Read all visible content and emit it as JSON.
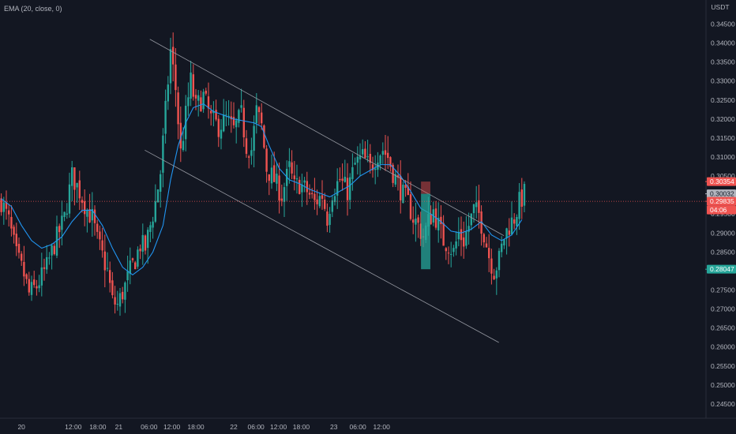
{
  "indicator": {
    "label": "EMA (20, close, 0)"
  },
  "colors": {
    "background": "#131722",
    "up": "#26a69a",
    "down": "#ef5350",
    "ema": "#2196f3",
    "channel": "#9598a1",
    "axis_text": "#b2b5be",
    "price_line": "#ef5350",
    "stop_zone": "#ef5350",
    "target_zone": "#26a69a"
  },
  "chart_data": {
    "type": "candlestick",
    "symbol_quote": "USDT",
    "grid": false,
    "ylim": [
      0.2425,
      0.3505
    ],
    "y_ticks": [
      "0.24500",
      "0.25000",
      "0.25500",
      "0.26000",
      "0.26500",
      "0.27000",
      "0.27500",
      "0.28000",
      "0.28500",
      "0.29000",
      "0.29500",
      "0.30000",
      "0.30500",
      "0.31000",
      "0.31500",
      "0.32000",
      "0.32500",
      "0.33000",
      "0.33500",
      "0.34000",
      "0.34500"
    ],
    "x_ticks": [
      "20",
      "12:00",
      "18:00",
      "21",
      "06:00",
      "12:00",
      "18:00",
      "22",
      "06:00",
      "12:00",
      "18:00",
      "23",
      "06:00",
      "12:00"
    ],
    "close_path": [
      [
        0,
        0.2985
      ],
      [
        3,
        0.293
      ],
      [
        6,
        0.284
      ],
      [
        9,
        0.279
      ],
      [
        11,
        0.274
      ],
      [
        14,
        0.276
      ],
      [
        18,
        0.281
      ],
      [
        21,
        0.287
      ],
      [
        25,
        0.294
      ],
      [
        28,
        0.305
      ],
      [
        31,
        0.301
      ],
      [
        34,
        0.296
      ],
      [
        36,
        0.294
      ],
      [
        38,
        0.288
      ],
      [
        40,
        0.284
      ],
      [
        42,
        0.28
      ],
      [
        44,
        0.272
      ],
      [
        46,
        0.271
      ],
      [
        49,
        0.276
      ],
      [
        51,
        0.28
      ],
      [
        53,
        0.283
      ],
      [
        55,
        0.287
      ],
      [
        57,
        0.286
      ],
      [
        59,
        0.292
      ],
      [
        61,
        0.298
      ],
      [
        63,
        0.306
      ],
      [
        65,
        0.322
      ],
      [
        67,
        0.338
      ],
      [
        69,
        0.328
      ],
      [
        71,
        0.311
      ],
      [
        73,
        0.321
      ],
      [
        75,
        0.33
      ],
      [
        77,
        0.323
      ],
      [
        80,
        0.326
      ],
      [
        83,
        0.32
      ],
      [
        86,
        0.318
      ],
      [
        89,
        0.32
      ],
      [
        92,
        0.317
      ],
      [
        95,
        0.321
      ],
      [
        97,
        0.313
      ],
      [
        99,
        0.312
      ],
      [
        101,
        0.322
      ],
      [
        103,
        0.318
      ],
      [
        105,
        0.307
      ],
      [
        108,
        0.304
      ],
      [
        111,
        0.3
      ],
      [
        114,
        0.307
      ],
      [
        116,
        0.302
      ],
      [
        118,
        0.303
      ],
      [
        121,
        0.301
      ],
      [
        124,
        0.298
      ],
      [
        127,
        0.3
      ],
      [
        129,
        0.294
      ],
      [
        131,
        0.301
      ],
      [
        134,
        0.304
      ],
      [
        137,
        0.301
      ],
      [
        140,
        0.308
      ],
      [
        143,
        0.31
      ],
      [
        146,
        0.307
      ],
      [
        149,
        0.311
      ],
      [
        151,
        0.312
      ],
      [
        153,
        0.31
      ],
      [
        155,
        0.306
      ],
      [
        157,
        0.303
      ],
      [
        159,
        0.3
      ],
      [
        161,
        0.298
      ],
      [
        163,
        0.294
      ],
      [
        165,
        0.292
      ],
      [
        167,
        0.289
      ],
      [
        169,
        0.293
      ],
      [
        171,
        0.296
      ],
      [
        173,
        0.292
      ],
      [
        175,
        0.288
      ],
      [
        177,
        0.287
      ],
      [
        179,
        0.285
      ],
      [
        181,
        0.29
      ],
      [
        183,
        0.288
      ],
      [
        185,
        0.292
      ],
      [
        187,
        0.296
      ],
      [
        189,
        0.295
      ],
      [
        191,
        0.29
      ],
      [
        193,
        0.284
      ],
      [
        195,
        0.28
      ],
      [
        197,
        0.283
      ],
      [
        199,
        0.289
      ],
      [
        201,
        0.292
      ],
      [
        203,
        0.294
      ],
      [
        205,
        0.298
      ],
      [
        207,
        0.3003
      ]
    ],
    "x_ticks_at_bar": [
      8.5,
      29,
      38.7,
      47,
      59,
      68,
      77.5,
      92.5,
      101.3,
      110.2,
      119.2,
      132.1,
      141.6,
      151
    ],
    "ema": {
      "name": "EMA (20, close, 0)",
      "points": [
        [
          0,
          0.299
        ],
        [
          4,
          0.297
        ],
        [
          8,
          0.292
        ],
        [
          12,
          0.288
        ],
        [
          16,
          0.286
        ],
        [
          20,
          0.287
        ],
        [
          24,
          0.289
        ],
        [
          28,
          0.293
        ],
        [
          32,
          0.296
        ],
        [
          36,
          0.296
        ],
        [
          40,
          0.292
        ],
        [
          44,
          0.286
        ],
        [
          48,
          0.281
        ],
        [
          52,
          0.279
        ],
        [
          56,
          0.281
        ],
        [
          60,
          0.285
        ],
        [
          64,
          0.292
        ],
        [
          67,
          0.304
        ],
        [
          70,
          0.313
        ],
        [
          73,
          0.319
        ],
        [
          76,
          0.323
        ],
        [
          80,
          0.324
        ],
        [
          84,
          0.322
        ],
        [
          88,
          0.321
        ],
        [
          92,
          0.32
        ],
        [
          96,
          0.3195
        ],
        [
          100,
          0.319
        ],
        [
          103,
          0.318
        ],
        [
          106,
          0.313
        ],
        [
          110,
          0.307
        ],
        [
          114,
          0.304
        ],
        [
          118,
          0.303
        ],
        [
          122,
          0.3015
        ],
        [
          126,
          0.3005
        ],
        [
          130,
          0.2995
        ],
        [
          134,
          0.301
        ],
        [
          138,
          0.3025
        ],
        [
          142,
          0.305
        ],
        [
          146,
          0.3065
        ],
        [
          150,
          0.308
        ],
        [
          154,
          0.308
        ],
        [
          158,
          0.305
        ],
        [
          162,
          0.301
        ],
        [
          166,
          0.2965
        ],
        [
          170,
          0.295
        ],
        [
          174,
          0.293
        ],
        [
          178,
          0.2905
        ],
        [
          182,
          0.29
        ],
        [
          186,
          0.291
        ],
        [
          190,
          0.293
        ],
        [
          194,
          0.2895
        ],
        [
          198,
          0.288
        ],
        [
          202,
          0.2895
        ],
        [
          206,
          0.2935
        ]
      ]
    },
    "channel": {
      "upper": [
        [
          0.341,
          59.3
        ],
        [
          0.3045,
          167.7
        ],
        [
          0.2893,
          199.4
        ]
      ],
      "lower": [
        [
          0.3118,
          57.3
        ],
        [
          0.2815,
          145.1
        ],
        [
          0.2612,
          197.4
        ]
      ],
      "upper_start_bar": 59.3,
      "upper_end_bar": 199.4,
      "lower_start_bar": 57.3,
      "lower_end_bar": 197.4
    },
    "position": {
      "entry": 0.30032,
      "stop": 0.30354,
      "target": 0.28047,
      "start_bar": 166.6,
      "end_bar": 170.3
    },
    "current_price": 0.29835,
    "price_tags": [
      {
        "text": "0.30354",
        "value": 0.30354,
        "bg": "#ef5350",
        "fg": "#ffffff"
      },
      {
        "text": "0.30032",
        "value": 0.30032,
        "bg": "#b2b5be",
        "fg": "#131722"
      },
      {
        "text": "0.29835",
        "value": 0.29835,
        "bg": "#ef5350",
        "fg": "#ffffff"
      },
      {
        "text": "04:06",
        "value": null,
        "bg": "#ef5350",
        "fg": "#ffffff"
      },
      {
        "text": "0.28047",
        "value": 0.28047,
        "bg": "#26a69a",
        "fg": "#ffffff"
      }
    ]
  }
}
